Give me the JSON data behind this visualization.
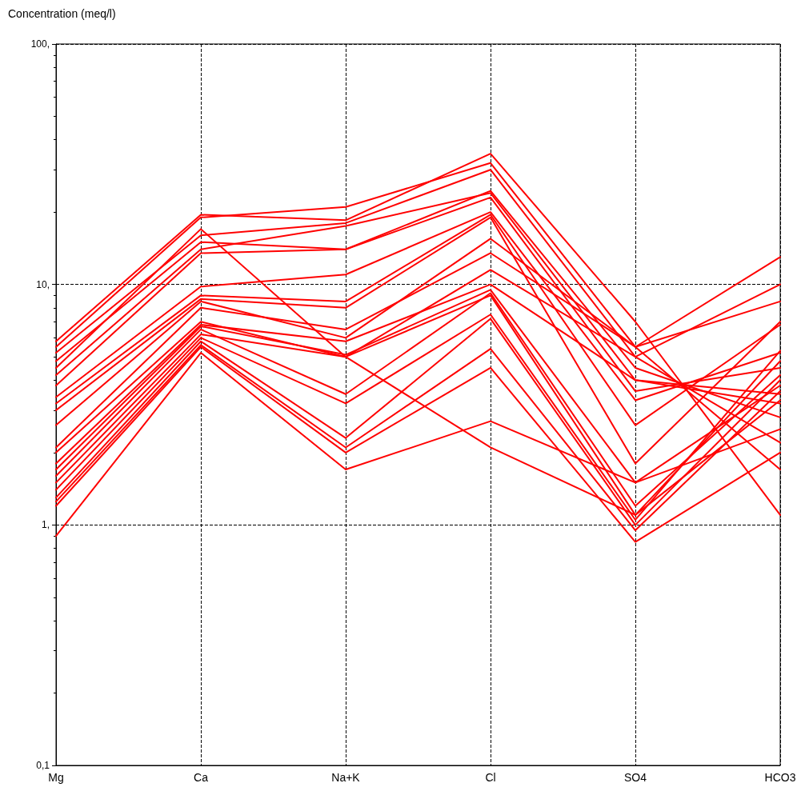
{
  "chart_data": {
    "type": "line",
    "ylabel": "Concentration (meq/l)",
    "categories": [
      "Mg",
      "Ca",
      "Na+K",
      "Cl",
      "SO4",
      "HCO3"
    ],
    "log": "y",
    "ylim": [
      0.1,
      100
    ],
    "yticks": [
      {
        "value": 0.1,
        "label": "0,1"
      },
      {
        "value": 1,
        "label": "1,"
      },
      {
        "value": 10,
        "label": "10,"
      },
      {
        "value": 100,
        "label": "100,"
      }
    ],
    "grid": true,
    "marker": "none",
    "line_style": "solid",
    "series": [
      {
        "color": "#ff0000",
        "values": [
          5.8,
          19.5,
          18.5,
          35,
          7,
          1.1
        ]
      },
      {
        "color": "#ff0000",
        "values": [
          5.5,
          19,
          21,
          32,
          5.5,
          1.7
        ]
      },
      {
        "color": "#ff0000",
        "values": [
          5.2,
          16,
          18,
          30,
          5,
          2.2
        ]
      },
      {
        "color": "#ff0000",
        "values": [
          4.8,
          15,
          14,
          24.5,
          4.5,
          2.8
        ]
      },
      {
        "color": "#ff0000",
        "values": [
          4.2,
          14,
          17.5,
          24,
          4,
          3.5
        ]
      },
      {
        "color": "#ff0000",
        "values": [
          3.8,
          13.5,
          14,
          23,
          3.6,
          4.5
        ]
      },
      {
        "color": "#ff0000",
        "values": [
          3.4,
          9.8,
          11,
          20,
          3.3,
          5.2
        ]
      },
      {
        "color": "#ff0000",
        "values": [
          3.2,
          9,
          8.5,
          19.5,
          2.6,
          6.8
        ]
      },
      {
        "color": "#ff0000",
        "values": [
          3,
          8.7,
          8,
          19,
          1.8,
          7
        ]
      },
      {
        "color": "#ff0000",
        "values": [
          2.6,
          8.5,
          6,
          15.5,
          5.5,
          13
        ]
      },
      {
        "color": "#ff0000",
        "values": [
          2.1,
          8,
          6.5,
          13.5,
          5.5,
          8.5
        ]
      },
      {
        "color": "#ff0000",
        "values": [
          2,
          7,
          5,
          11.5,
          5,
          10
        ]
      },
      {
        "color": "#ff0000",
        "values": [
          1.8,
          6.8,
          5.8,
          10,
          4,
          3.2
        ]
      },
      {
        "color": "#ff0000",
        "values": [
          1.7,
          6.7,
          5.1,
          9.5,
          1.5,
          3.8
        ]
      },
      {
        "color": "#ff0000",
        "values": [
          1.6,
          6.5,
          3.5,
          9.2,
          1.2,
          4.2
        ]
      },
      {
        "color": "#ff0000",
        "values": [
          1.5,
          6.2,
          5,
          9,
          1.1,
          4.8
        ]
      },
      {
        "color": "#ff0000",
        "values": [
          1.4,
          6,
          3.2,
          7.5,
          1.05,
          5.3
        ]
      },
      {
        "color": "#ff0000",
        "values": [
          1.3,
          5.8,
          2.3,
          7.2,
          1,
          4
        ]
      },
      {
        "color": "#ff0000",
        "values": [
          1.25,
          5.6,
          2.1,
          5.4,
          0.95,
          3.6
        ]
      },
      {
        "color": "#ff0000",
        "values": [
          1.2,
          5.5,
          2,
          4.5,
          0.85,
          2
        ]
      },
      {
        "color": "#ff0000",
        "values": [
          0.9,
          5.2,
          1.7,
          2.7,
          1.5,
          2.5
        ]
      },
      {
        "color": "#ff0000",
        "values": [
          4.5,
          17,
          5,
          2.1,
          1.1,
          3.3
        ]
      }
    ]
  }
}
